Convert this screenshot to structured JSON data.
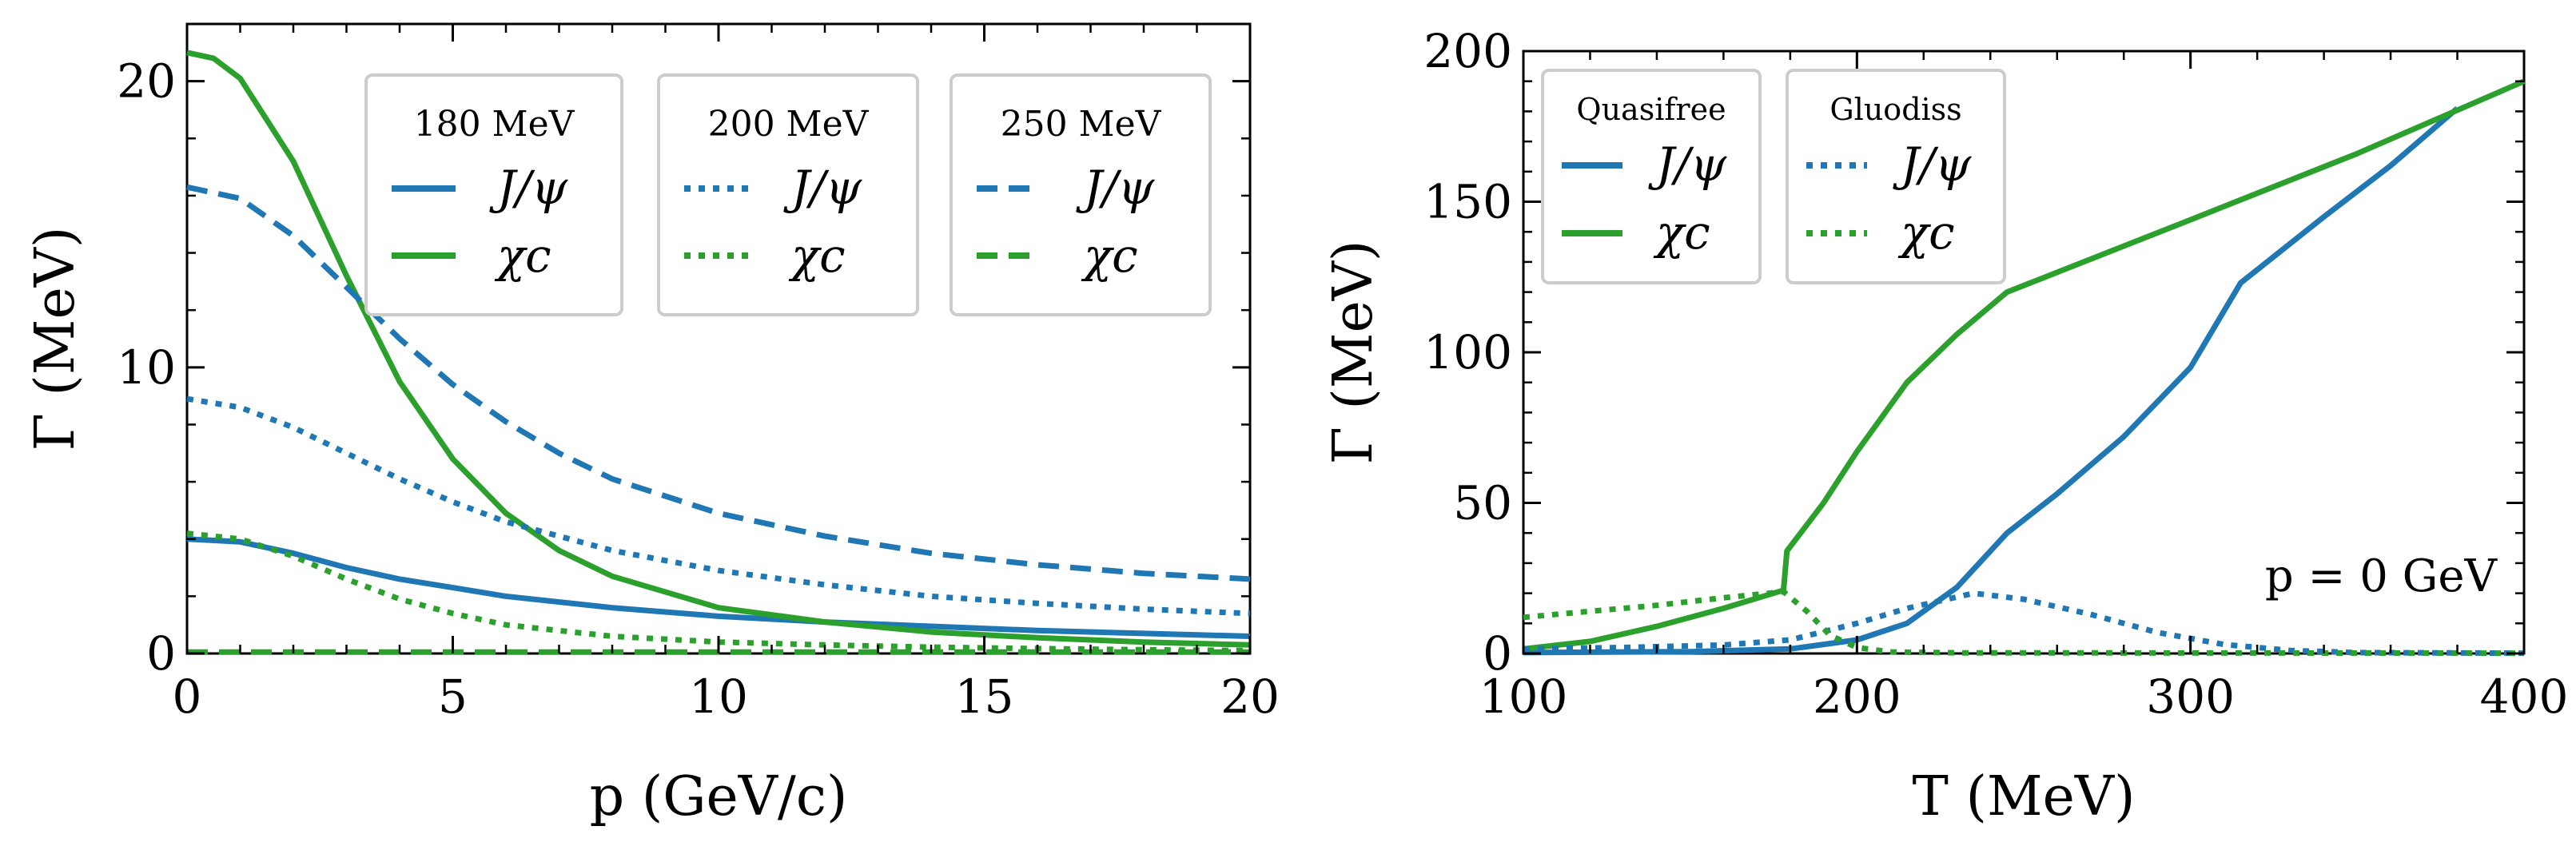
{
  "colors": {
    "blue": "#1f77b4",
    "green": "#2ca02c"
  },
  "chart_data": [
    {
      "type": "line",
      "xlabel": "p (GeV/c)",
      "ylabel": "Γ (MeV)",
      "xlim": [
        0,
        20
      ],
      "ylim": [
        0,
        22
      ],
      "xticks": [
        0,
        5,
        10,
        15,
        20
      ],
      "yticks": [
        0,
        10,
        20
      ],
      "legend_groups": [
        {
          "title": "180 MeV",
          "style": "solid",
          "entries": [
            "J/ψ",
            "χc"
          ]
        },
        {
          "title": "200 MeV",
          "style": "dotted",
          "entries": [
            "J/ψ",
            "χc"
          ]
        },
        {
          "title": "250 MeV",
          "style": "dashed",
          "entries": [
            "J/ψ",
            "χc"
          ]
        }
      ],
      "series": [
        {
          "name": "J/ψ 180 MeV",
          "color": "blue",
          "style": "solid",
          "x": [
            0,
            1,
            2,
            3,
            4,
            5,
            6,
            8,
            10,
            12,
            14,
            16,
            18,
            20
          ],
          "y": [
            4.0,
            3.9,
            3.5,
            3.0,
            2.6,
            2.3,
            2.0,
            1.6,
            1.3,
            1.1,
            0.95,
            0.8,
            0.7,
            0.6
          ]
        },
        {
          "name": "χc 180 MeV",
          "color": "green",
          "style": "solid",
          "x": [
            0,
            0.5,
            1,
            2,
            3,
            4,
            5,
            6,
            7,
            8,
            10,
            12,
            14,
            16,
            18,
            20
          ],
          "y": [
            21.0,
            20.8,
            20.1,
            17.2,
            13.2,
            9.5,
            6.8,
            4.9,
            3.6,
            2.7,
            1.6,
            1.1,
            0.75,
            0.55,
            0.4,
            0.3
          ]
        },
        {
          "name": "J/ψ 200 MeV",
          "color": "blue",
          "style": "dotted",
          "x": [
            0,
            1,
            2,
            3,
            4,
            5,
            6,
            8,
            10,
            12,
            14,
            16,
            18,
            20
          ],
          "y": [
            8.9,
            8.6,
            7.9,
            7.0,
            6.1,
            5.3,
            4.6,
            3.6,
            2.9,
            2.4,
            2.0,
            1.75,
            1.55,
            1.4
          ]
        },
        {
          "name": "χc 200 MeV",
          "color": "green",
          "style": "dotted",
          "x": [
            0,
            1,
            2,
            3,
            4,
            5,
            6,
            8,
            10,
            12,
            14,
            16,
            18,
            20
          ],
          "y": [
            4.2,
            4.0,
            3.4,
            2.6,
            1.9,
            1.4,
            1.0,
            0.6,
            0.4,
            0.3,
            0.22,
            0.17,
            0.13,
            0.1
          ]
        },
        {
          "name": "J/ψ 250 MeV",
          "color": "blue",
          "style": "dashed",
          "x": [
            0,
            1,
            2,
            3,
            4,
            5,
            6,
            7,
            8,
            10,
            12,
            14,
            16,
            18,
            20
          ],
          "y": [
            16.3,
            15.9,
            14.6,
            12.8,
            11.0,
            9.4,
            8.1,
            7.0,
            6.1,
            4.9,
            4.1,
            3.5,
            3.1,
            2.8,
            2.6
          ]
        },
        {
          "name": "χc 250 MeV",
          "color": "green",
          "style": "dashed",
          "x": [
            0,
            5,
            10,
            15,
            20
          ],
          "y": [
            0.05,
            0.05,
            0.05,
            0.05,
            0.05
          ]
        }
      ]
    },
    {
      "type": "line",
      "xlabel": "T (MeV)",
      "ylabel": "Γ (MeV)",
      "xlim": [
        100,
        400
      ],
      "ylim": [
        0,
        200
      ],
      "xticks": [
        100,
        200,
        300,
        400
      ],
      "yticks": [
        0,
        50,
        100,
        150,
        200
      ],
      "annotation": "p = 0 GeV",
      "legend_groups": [
        {
          "title": "Quasifree",
          "style": "solid",
          "entries": [
            "J/ψ",
            "χc"
          ]
        },
        {
          "title": "Gluodiss",
          "style": "dotted",
          "entries": [
            "J/ψ",
            "χc"
          ]
        }
      ],
      "series": [
        {
          "name": "J/ψ Quasifree",
          "color": "blue",
          "style": "solid",
          "x": [
            100,
            150,
            180,
            200,
            215,
            230,
            245,
            260,
            280,
            300,
            315,
            340,
            360,
            380
          ],
          "y": [
            0.3,
            0.6,
            1.5,
            4.5,
            10,
            22,
            40,
            53,
            72,
            95,
            123,
            145,
            162,
            181
          ]
        },
        {
          "name": "χc Quasifree",
          "color": "green",
          "style": "solid",
          "x": [
            100,
            120,
            140,
            160,
            178,
            179,
            190,
            200,
            215,
            230,
            245,
            300,
            350,
            400
          ],
          "y": [
            1.5,
            4,
            9,
            15,
            21,
            34,
            50,
            67,
            90,
            106,
            120,
            144,
            166,
            190
          ]
        },
        {
          "name": "J/ψ Gluodiss",
          "color": "blue",
          "style": "dotted",
          "x": [
            100,
            130,
            160,
            180,
            200,
            215,
            235,
            250,
            270,
            290,
            310,
            330,
            350,
            400
          ],
          "y": [
            1.5,
            2,
            2.8,
            4.5,
            10,
            15,
            20,
            18,
            13,
            7,
            3,
            1,
            0.3,
            0.1
          ]
        },
        {
          "name": "χc Gluodiss",
          "color": "green",
          "style": "dotted",
          "x": [
            100,
            120,
            140,
            160,
            178,
            185,
            192,
            200,
            210,
            230,
            400
          ],
          "y": [
            12,
            14,
            16,
            18.5,
            20.5,
            14,
            6,
            2,
            0.5,
            0.2,
            0.1
          ]
        }
      ]
    }
  ]
}
